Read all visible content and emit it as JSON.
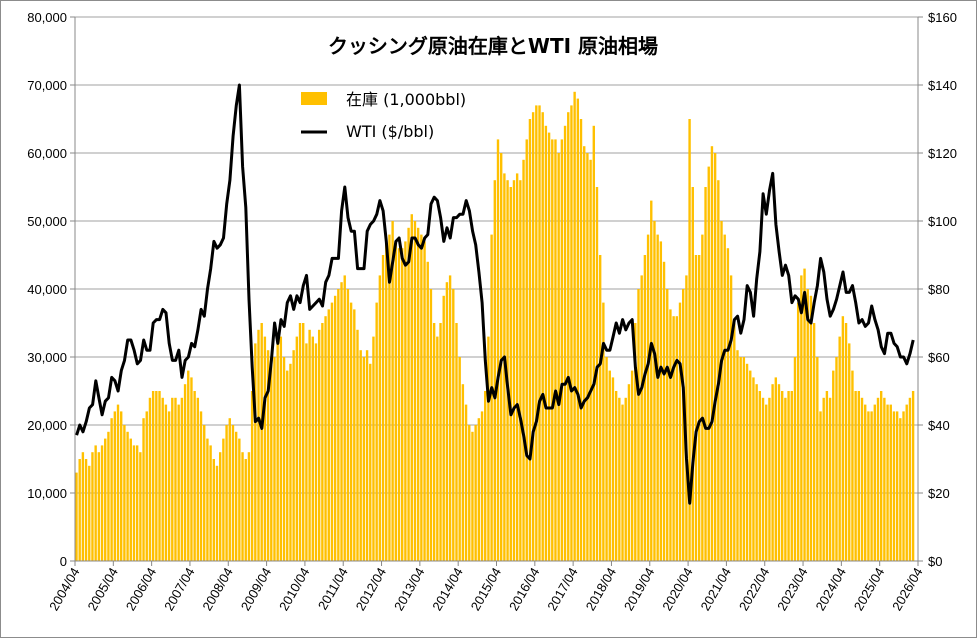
{
  "chart_data": {
    "type": "bar+line",
    "title": "クッシング原油在庫とWTI 原油相場",
    "legend": {
      "position": "top-center",
      "entries": [
        "在庫 (1,000bbl)",
        "WTI ($/bbl)"
      ]
    },
    "colors": {
      "inventory": "#FFC000",
      "wti": "#000000",
      "grid": "#A0A0A0"
    },
    "start_month": "2004/04",
    "frequency": "monthly",
    "x_tick_labels": [
      "2004/04",
      "2005/04",
      "2006/04",
      "2007/04",
      "2008/04",
      "2009/04",
      "2010/04",
      "2011/04",
      "2012/04",
      "2013/04",
      "2014/04",
      "2015/04",
      "2016/04",
      "2017/04",
      "2018/04",
      "2019/04",
      "2020/04",
      "2021/04",
      "2022/04",
      "2023/04",
      "2024/04",
      "2025/04",
      "2026/04"
    ],
    "y_left": {
      "range": [
        0,
        80000
      ],
      "step": 10000,
      "tick_labels": [
        "0",
        "10,000",
        "20,000",
        "30,000",
        "40,000",
        "50,000",
        "60,000",
        "70,000",
        "80,000"
      ]
    },
    "y_right": {
      "range": [
        0,
        160
      ],
      "step": 20,
      "tick_labels": [
        "$0",
        "$20",
        "$40",
        "$60",
        "$80",
        "$100",
        "$120",
        "$140",
        "$160"
      ]
    },
    "grid": true,
    "series": [
      {
        "name": "在庫 (1,000bbl)",
        "type": "bar",
        "axis": "left",
        "values": [
          13000,
          15000,
          16000,
          15000,
          14000,
          16000,
          17000,
          16000,
          17000,
          18000,
          19000,
          21000,
          22000,
          23000,
          22000,
          20000,
          19000,
          18000,
          17000,
          17000,
          16000,
          21000,
          22000,
          24000,
          25000,
          25000,
          25000,
          24000,
          23000,
          22000,
          24000,
          24000,
          23000,
          24000,
          26000,
          28000,
          27000,
          25000,
          24000,
          22000,
          20000,
          18000,
          17000,
          15000,
          14000,
          16000,
          18000,
          20000,
          21000,
          20000,
          19000,
          18000,
          16000,
          15000,
          16000,
          25000,
          32000,
          34000,
          35000,
          33000,
          31000,
          30000,
          30000,
          32000,
          33000,
          30000,
          28000,
          29000,
          31000,
          33000,
          35000,
          35000,
          32000,
          34000,
          33000,
          32000,
          34000,
          35000,
          36000,
          37000,
          38000,
          39000,
          40000,
          41000,
          42000,
          40000,
          38000,
          37000,
          34000,
          31000,
          30000,
          31000,
          29000,
          33000,
          38000,
          42000,
          45000,
          47000,
          48000,
          50000,
          47000,
          46000,
          46000,
          47000,
          49000,
          51000,
          50000,
          49000,
          48000,
          47000,
          44000,
          40000,
          35000,
          33000,
          35000,
          39000,
          41000,
          42000,
          40000,
          35000,
          30000,
          26000,
          23000,
          20000,
          19000,
          20000,
          21000,
          22000,
          25000,
          33000,
          48000,
          56000,
          62000,
          60000,
          57000,
          56000,
          55000,
          56000,
          57000,
          56000,
          59000,
          62000,
          65000,
          66000,
          67000,
          67000,
          66000,
          64000,
          63000,
          62000,
          62000,
          60000,
          62000,
          64000,
          66000,
          67000,
          69000,
          68000,
          65000,
          61000,
          60000,
          59000,
          64000,
          55000,
          45000,
          38000,
          30000,
          28000,
          27000,
          25000,
          24000,
          23000,
          24000,
          26000,
          28000,
          35000,
          40000,
          42000,
          45000,
          48000,
          53000,
          50000,
          48000,
          47000,
          44000,
          40000,
          37000,
          36000,
          36000,
          38000,
          40000,
          42000,
          65000,
          55000,
          45000,
          45000,
          48000,
          55000,
          58000,
          61000,
          60000,
          56000,
          50000,
          48000,
          46000,
          42000,
          35000,
          31000,
          30000,
          30000,
          29000,
          28000,
          27000,
          26000,
          25000,
          24000,
          23000,
          24000,
          26000,
          27000,
          26000,
          25000,
          24000,
          25000,
          25000,
          30000,
          38000,
          42000,
          43000,
          40000,
          39000,
          35000,
          30000,
          22000,
          24000,
          25000,
          24000,
          28000,
          30000,
          33000,
          36000,
          35000,
          32000,
          28000,
          25000,
          25000,
          24000,
          23000,
          22000,
          22000,
          23000,
          24000,
          25000,
          24000,
          23000,
          23000,
          22000,
          22000,
          21000,
          22000,
          23000,
          24000,
          25000
        ]
      },
      {
        "name": "WTI ($/bbl)",
        "type": "line",
        "axis": "right",
        "values": [
          37,
          40,
          38,
          41,
          45,
          46,
          53,
          48,
          43,
          47,
          48,
          54,
          53,
          50,
          56,
          59,
          65,
          65,
          62,
          58,
          59,
          65,
          62,
          62,
          70,
          71,
          71,
          74,
          73,
          64,
          59,
          59,
          62,
          54,
          59,
          60,
          64,
          63,
          68,
          74,
          72,
          80,
          86,
          94,
          92,
          93,
          95,
          105,
          112,
          125,
          134,
          140,
          116,
          104,
          77,
          57,
          41,
          42,
          39,
          48,
          50,
          59,
          70,
          64,
          71,
          69,
          76,
          78,
          74,
          78,
          76,
          81,
          84,
          74,
          75,
          76,
          77,
          75,
          82,
          84,
          89,
          89,
          89,
          103,
          110,
          101,
          97,
          97,
          86,
          86,
          86,
          97,
          99,
          100,
          102,
          106,
          103,
          94,
          82,
          88,
          94,
          95,
          89,
          87,
          88,
          95,
          95,
          93,
          92,
          95,
          96,
          105,
          107,
          106,
          101,
          94,
          98,
          95,
          101,
          101,
          102,
          102,
          106,
          103,
          97,
          93,
          85,
          76,
          59,
          47,
          51,
          48,
          54,
          59,
          60,
          51,
          43,
          45,
          46,
          42,
          37,
          31,
          30,
          38,
          41,
          47,
          49,
          45,
          45,
          45,
          50,
          46,
          52,
          52,
          54,
          50,
          51,
          49,
          45,
          47,
          48,
          50,
          52,
          57,
          58,
          64,
          62,
          62,
          66,
          70,
          67,
          71,
          68,
          70,
          71,
          57,
          49,
          51,
          55,
          58,
          64,
          61,
          54,
          57,
          55,
          57,
          54,
          57,
          59,
          58,
          51,
          30,
          17,
          29,
          38,
          41,
          42,
          39,
          39,
          41,
          47,
          52,
          59,
          62,
          62,
          65,
          71,
          72,
          67,
          71,
          81,
          79,
          72,
          83,
          91,
          108,
          102,
          109,
          114,
          99,
          91,
          84,
          87,
          84,
          76,
          78,
          77,
          73,
          79,
          71,
          70,
          76,
          81,
          89,
          85,
          77,
          72,
          74,
          77,
          81,
          85,
          79,
          79,
          81,
          76,
          70,
          71,
          69,
          70,
          75,
          71,
          68,
          63,
          61,
          67,
          67,
          64,
          63,
          60,
          60,
          58,
          61,
          65
        ]
      }
    ]
  }
}
